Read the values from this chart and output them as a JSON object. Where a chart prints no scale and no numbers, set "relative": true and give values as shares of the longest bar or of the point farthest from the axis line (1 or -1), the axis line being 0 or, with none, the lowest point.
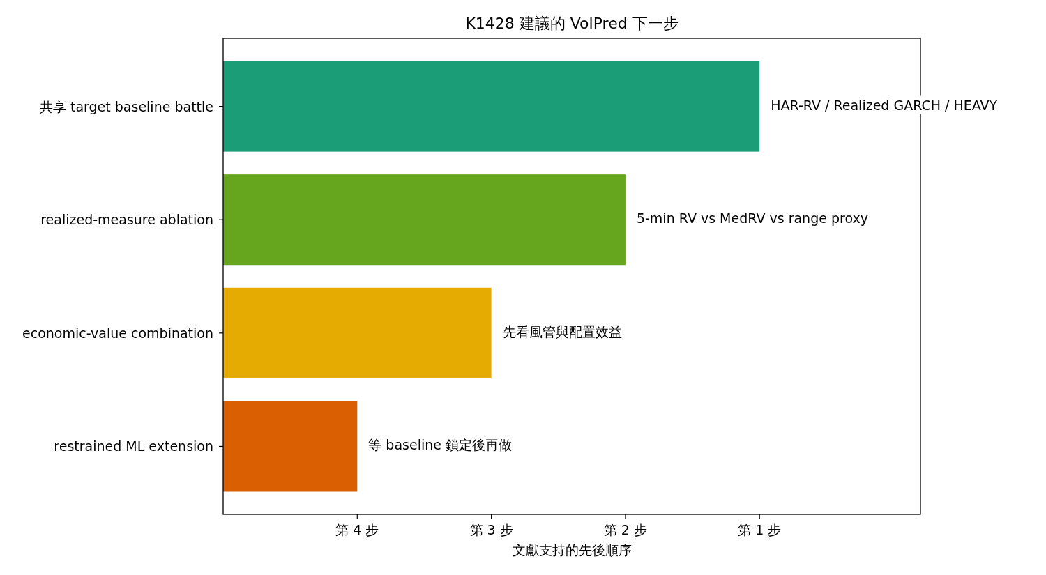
{
  "chart_data": {
    "type": "bar",
    "orientation": "horizontal",
    "title": "K1428 建議的 VolPred 下一步",
    "xlabel": "文獻支持的先後順序",
    "categories": [
      "共享 target baseline battle",
      "realized-measure ablation",
      "economic-value combination",
      "restrained ML extension"
    ],
    "relative": true,
    "values": [
      1,
      0.75,
      0.5,
      0.25
    ],
    "colors": [
      "#1b9e77",
      "#66a61e",
      "#e6ab02",
      "#d95f02"
    ],
    "annotations": [
      {
        "text": "第 4 步",
        "x": 0.25
      },
      {
        "text": "第 3 步",
        "x": 0.5
      },
      {
        "text": "第 2 步",
        "x": 0.75
      },
      {
        "text": "第 1 步",
        "x": 1
      },
      {
        "text": "HAR-RV / Realized GARCH / HEAVY",
        "x": 1,
        "y": "共享 target baseline battle"
      },
      {
        "text": "5-min RV vs MedRV vs range proxy",
        "x": 0.75,
        "y": "realized-measure ablation"
      },
      {
        "text": "先看風管與配置效益",
        "x": 0.5,
        "y": "economic-value combination"
      },
      {
        "text": "等 baseline 鎖定後再做",
        "x": 0.25,
        "y": "restrained ML extension"
      }
    ]
  }
}
